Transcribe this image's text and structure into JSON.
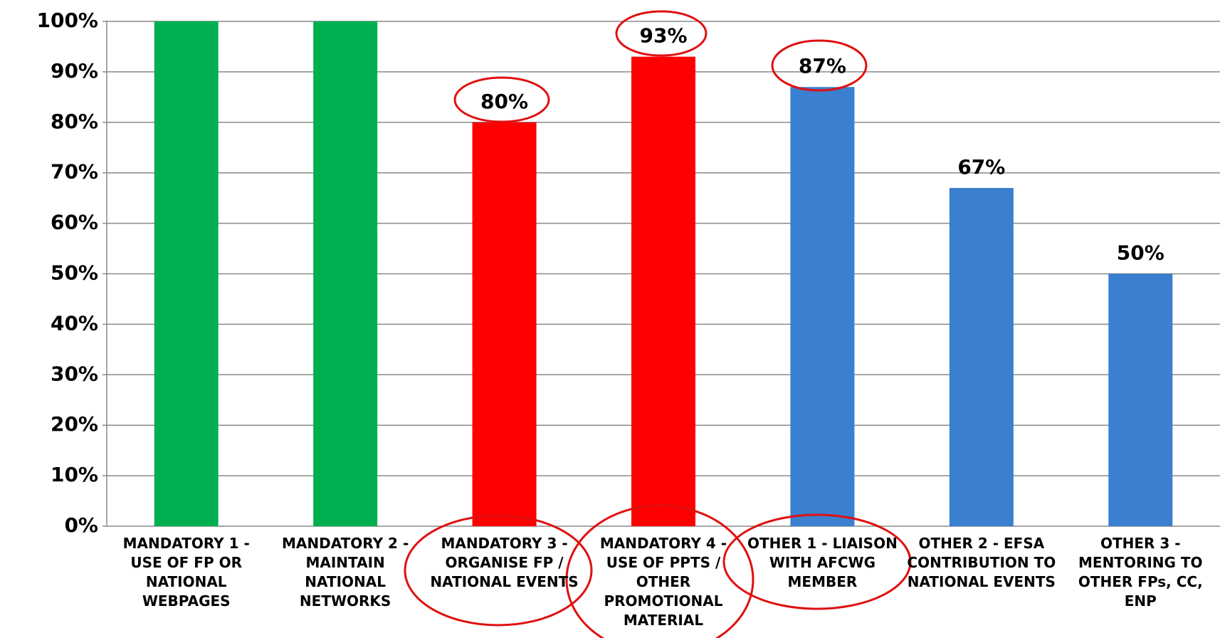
{
  "chart_data": {
    "type": "bar",
    "categories": [
      "MANDATORY 1 - USE OF FP OR NATIONAL WEBPAGES",
      "MANDATORY 2 - MAINTAIN NATIONAL NETWORKS",
      "MANDATORY 3 - ORGANISE FP / NATIONAL EVENTS",
      "MANDATORY 4 - USE OF PPTS / OTHER PROMOTIONAL MATERIAL",
      "OTHER 1 - LIAISON WITH AFCWG MEMBER",
      "OTHER 2 - EFSA CONTRIBUTION TO NATIONAL EVENTS",
      "OTHER 3 - MENTORING TO OTHER FPs, CC, ENP"
    ],
    "values": [
      100,
      100,
      80,
      93,
      87,
      67,
      50
    ],
    "value_labels": [
      null,
      null,
      "80%",
      "93%",
      "87%",
      "67%",
      "50%"
    ],
    "colors": [
      "#00b050",
      "#00b050",
      "#ff0000",
      "#ff0000",
      "#3a7fd0",
      "#3a7fd0",
      "#3a7fd0"
    ],
    "ylim": [
      0,
      100
    ],
    "yticks": [
      {
        "value": 0,
        "label": "0%"
      },
      {
        "value": 10,
        "label": "10%"
      },
      {
        "value": 20,
        "label": "20%"
      },
      {
        "value": 30,
        "label": "30%"
      },
      {
        "value": 40,
        "label": "40%"
      },
      {
        "value": 50,
        "label": "50%"
      },
      {
        "value": 60,
        "label": "60%"
      },
      {
        "value": 70,
        "label": "70%"
      },
      {
        "value": 80,
        "label": "80%"
      },
      {
        "value": 90,
        "label": "90%"
      },
      {
        "value": 100,
        "label": "100%"
      }
    ],
    "grid": true
  }
}
